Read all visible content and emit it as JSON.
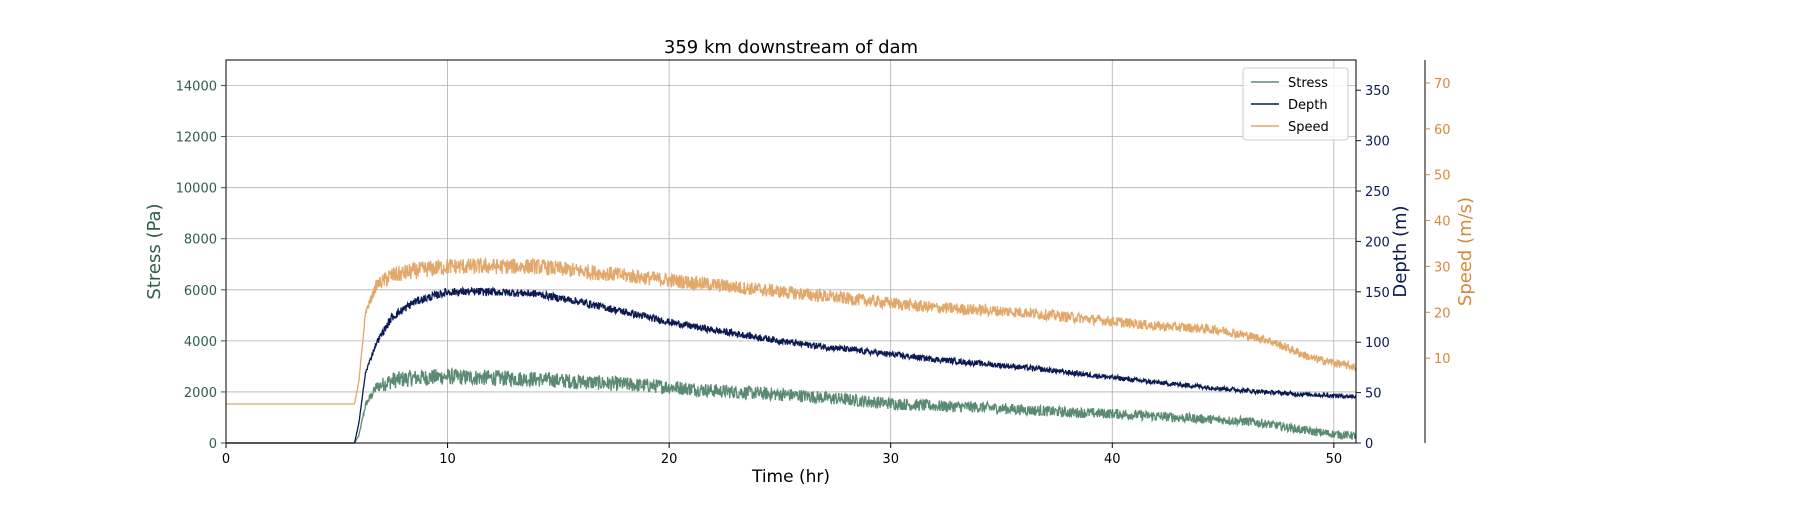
{
  "chart_data": {
    "type": "line",
    "title": "359 km downstream of dam",
    "xlabel": "Time (hr)",
    "xlim": [
      0,
      51
    ],
    "xticks": [
      0,
      10,
      20,
      30,
      40,
      50
    ],
    "grid": true,
    "legend_position": "top-right",
    "axes": [
      {
        "id": "stress",
        "label": "Stress (Pa)",
        "side": "left",
        "ylim": [
          0,
          15000
        ],
        "ticks": [
          0,
          2000,
          4000,
          6000,
          8000,
          10000,
          12000,
          14000
        ],
        "color": "#2f5e47"
      },
      {
        "id": "depth",
        "label": "Depth (m)",
        "side": "right",
        "ylim": [
          0,
          380
        ],
        "ticks": [
          0,
          50,
          100,
          150,
          200,
          250,
          300,
          350
        ],
        "color": "#0b1a52"
      },
      {
        "id": "speed",
        "label": "Speed (m/s)",
        "side": "right-outer",
        "ylim": [
          -8.5,
          75
        ],
        "ticks": [
          10,
          20,
          30,
          40,
          50,
          60,
          70
        ],
        "color": "#d58a3a"
      }
    ],
    "series": [
      {
        "name": "Stress",
        "axis": "stress",
        "color": "#5b8a72",
        "noise": 320,
        "x": [
          0,
          5.8,
          6.0,
          6.3,
          6.8,
          7.5,
          8.5,
          10,
          12,
          14,
          16,
          18,
          20,
          22,
          24,
          26,
          28,
          30,
          32,
          34,
          36,
          38,
          40,
          42,
          44,
          45,
          46,
          47,
          48,
          49,
          50,
          51
        ],
        "y": [
          0,
          0,
          300,
          1500,
          2200,
          2450,
          2550,
          2600,
          2550,
          2500,
          2400,
          2300,
          2200,
          2050,
          1950,
          1850,
          1700,
          1550,
          1450,
          1400,
          1300,
          1200,
          1150,
          1050,
          950,
          900,
          850,
          750,
          600,
          450,
          350,
          280
        ]
      },
      {
        "name": "Depth",
        "axis": "depth",
        "color": "#0b1a52",
        "noise": 4,
        "x": [
          0,
          5.8,
          6.0,
          6.3,
          6.8,
          7.5,
          8.5,
          10,
          12,
          14,
          16,
          18,
          20,
          22,
          24,
          26,
          28,
          30,
          32,
          34,
          36,
          38,
          40,
          42,
          44,
          46,
          48,
          50,
          51
        ],
        "y": [
          0,
          0,
          20,
          70,
          100,
          125,
          140,
          150,
          150,
          148,
          140,
          130,
          120,
          112,
          105,
          98,
          93,
          88,
          83,
          79,
          75,
          70,
          65,
          60,
          56,
          52,
          49,
          47,
          46
        ]
      },
      {
        "name": "Speed",
        "axis": "speed",
        "color": "#e1a86a",
        "noise": 1.8,
        "x": [
          0,
          5.8,
          6.0,
          6.3,
          6.8,
          7.5,
          8.5,
          10,
          12,
          14,
          16,
          18,
          20,
          22,
          24,
          26,
          28,
          30,
          32,
          34,
          36,
          38,
          40,
          42,
          44,
          45,
          46,
          47,
          48,
          49,
          50,
          51
        ],
        "y": [
          0,
          0,
          5,
          20,
          26,
          28,
          29,
          30,
          30,
          30,
          29,
          28,
          27,
          26,
          25,
          24,
          23,
          22,
          21,
          20.5,
          20,
          19,
          18,
          17,
          16.5,
          16,
          15,
          14,
          12,
          10,
          9,
          8
        ]
      }
    ]
  }
}
